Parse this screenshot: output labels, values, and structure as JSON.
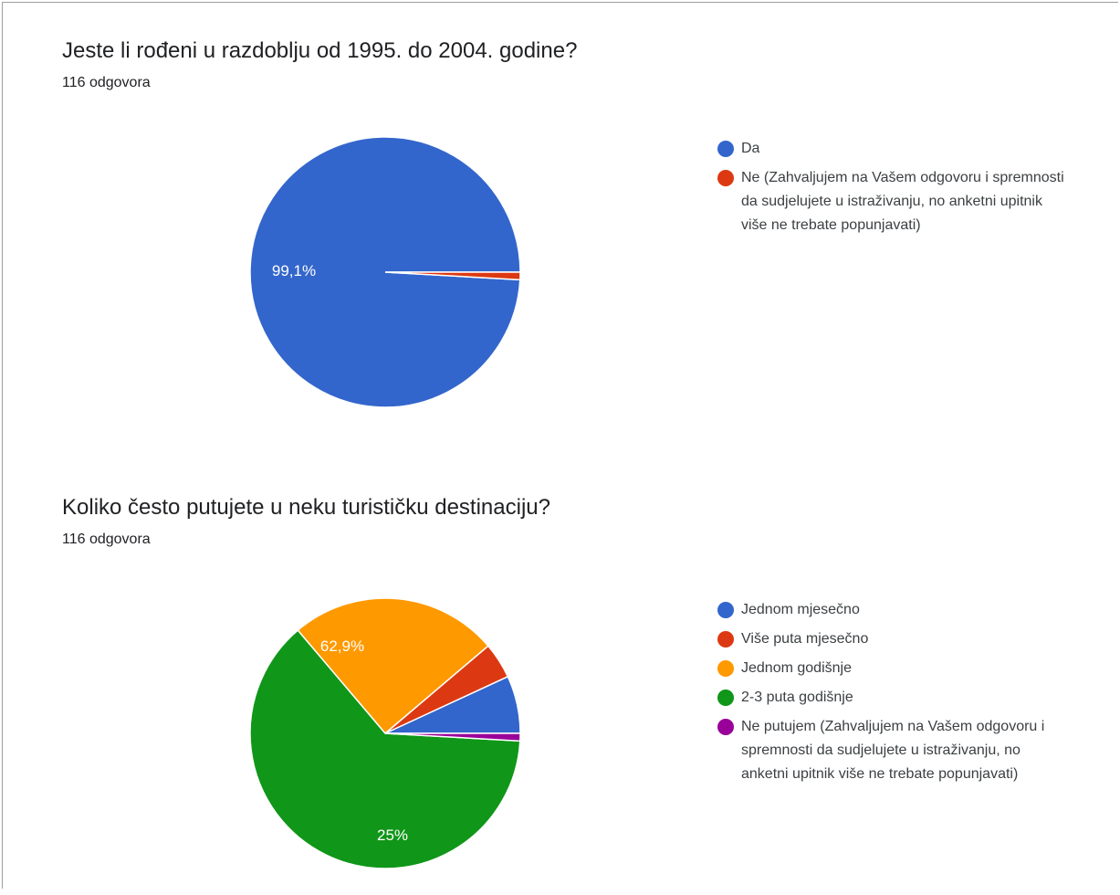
{
  "chart_data": [
    {
      "type": "pie",
      "title": "Jeste li rođeni u razdoblju od 1995. do 2004. godine?",
      "subtitle": "116 odgovora",
      "labels": [
        "Da",
        "Ne (Zahvaljujem na Vašem odgovoru i spremnosti da sudjelujete u istraživanju, no anketni upitnik više ne trebate popunjavati)"
      ],
      "values": [
        99.1,
        0.9
      ],
      "colors": [
        "#3366cc",
        "#dc3912"
      ],
      "slice_labels": [
        "99,1%",
        ""
      ],
      "legend_position": "right"
    },
    {
      "type": "pie",
      "title": "Koliko često putujete u neku turističku destinaciju?",
      "subtitle": "116 odgovora",
      "labels": [
        "Jednom mjesečno",
        "Više puta mjesečno",
        "Jednom godišnje",
        "2-3 puta godišnje",
        "Ne putujem (Zahvaljujem na Vašem odgovoru i spremnosti da sudjelujete u istraživanju, no anketni upitnik više ne trebate popunjavati)"
      ],
      "values": [
        6.9,
        4.3,
        25,
        62.9,
        0.9
      ],
      "colors": [
        "#3366cc",
        "#dc3912",
        "#ff9900",
        "#109618",
        "#990099"
      ],
      "slice_labels": [
        "",
        "",
        "25%",
        "62,9%",
        ""
      ],
      "legend_position": "right"
    }
  ]
}
